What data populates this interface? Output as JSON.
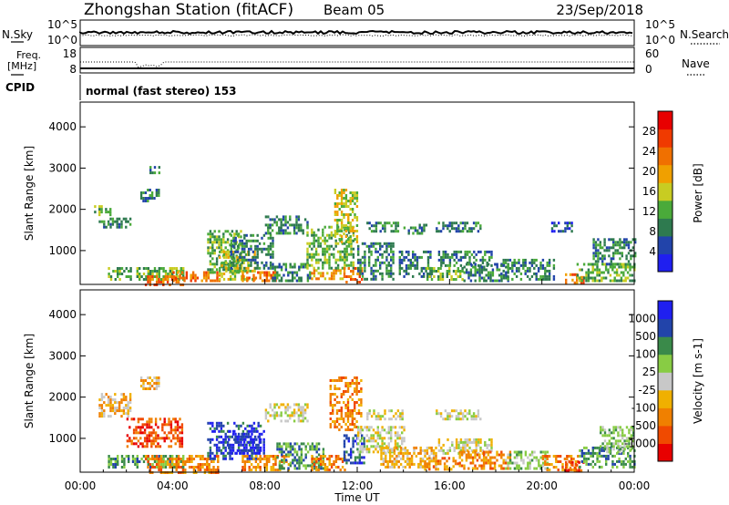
{
  "header": {
    "title": "Zhongshan Station (fitACF)",
    "beam": "Beam 05",
    "date": "23/Sep/2018"
  },
  "top_panel": {
    "left_label": "N.Sky",
    "right_label": "N.Search",
    "left_ticks": [
      "10^5",
      "10^0"
    ],
    "right_ticks": [
      "10^5",
      "10^0"
    ]
  },
  "freq_panel": {
    "left_label_line1": "Freq.",
    "left_label_line2": "[MHz]",
    "left_ticks": [
      "18",
      "8"
    ],
    "right_label": "Nave",
    "right_ticks": [
      "60",
      "0"
    ],
    "cpid_label": "CPID",
    "cpid_text": "normal (fast stereo) 153"
  },
  "colors": {
    "power": [
      "#1f1ff0",
      "#2244aa",
      "#2e7a4f",
      "#4aaa3a",
      "#c8cc22",
      "#f0a000",
      "#f07000",
      "#f03a00",
      "#e80000"
    ],
    "velocity": [
      "#e80000",
      "#f04a00",
      "#f08000",
      "#f0b000",
      "#c8c8c8",
      "#88cc44",
      "#3a8a4a",
      "#2244aa",
      "#1f1ff0"
    ]
  },
  "chart_data": [
    {
      "type": "heatmap",
      "name": "power",
      "ylabel": "Slant Range [km]",
      "yticks": [
        1000,
        2000,
        3000,
        4000
      ],
      "ylim": [
        180,
        4600
      ],
      "xlim": [
        0,
        24
      ],
      "colorbar_label": "Power [dB]",
      "colorbar_ticks": [
        "4",
        "8",
        "12",
        "16",
        "20",
        "24",
        "28"
      ],
      "colorbar_range": [
        0,
        32
      ],
      "regions": [
        {
          "t0": 0.8,
          "t1": 2.2,
          "r0": 1550,
          "r1": 1800,
          "v": 9
        },
        {
          "t0": 0.6,
          "t1": 1.3,
          "r0": 1850,
          "r1": 2100,
          "v": 12
        },
        {
          "t0": 2.6,
          "t1": 3.4,
          "r0": 2200,
          "r1": 2500,
          "v": 9
        },
        {
          "t0": 3.0,
          "t1": 3.5,
          "r0": 2900,
          "r1": 3050,
          "v": 8
        },
        {
          "t0": 1.2,
          "t1": 4.5,
          "r0": 300,
          "r1": 600,
          "v": 14
        },
        {
          "t0": 2.8,
          "t1": 4.6,
          "r0": 200,
          "r1": 400,
          "v": 24
        },
        {
          "t0": 4.0,
          "t1": 6.0,
          "r0": 250,
          "r1": 500,
          "v": 24
        },
        {
          "t0": 5.5,
          "t1": 7.0,
          "r0": 500,
          "r1": 1500,
          "v": 12
        },
        {
          "t0": 6.0,
          "t1": 7.6,
          "r0": 300,
          "r1": 1000,
          "v": 16
        },
        {
          "t0": 7.0,
          "t1": 8.5,
          "r0": 250,
          "r1": 500,
          "v": 22
        },
        {
          "t0": 6.5,
          "t1": 8.3,
          "r0": 600,
          "r1": 1400,
          "v": 10
        },
        {
          "t0": 8.0,
          "t1": 9.8,
          "r0": 1450,
          "r1": 1850,
          "v": 9
        },
        {
          "t0": 8.3,
          "t1": 10.0,
          "r0": 300,
          "r1": 700,
          "v": 10
        },
        {
          "t0": 10.0,
          "t1": 11.4,
          "r0": 300,
          "r1": 550,
          "v": 20
        },
        {
          "t0": 9.8,
          "t1": 11.8,
          "r0": 600,
          "r1": 1600,
          "v": 11
        },
        {
          "t0": 11.0,
          "t1": 12.0,
          "r0": 1200,
          "r1": 2500,
          "v": 15
        },
        {
          "t0": 11.4,
          "t1": 12.2,
          "r0": 250,
          "r1": 600,
          "v": 24
        },
        {
          "t0": 12.0,
          "t1": 13.6,
          "r0": 300,
          "r1": 1200,
          "v": 9
        },
        {
          "t0": 12.4,
          "t1": 13.8,
          "r0": 1500,
          "r1": 1700,
          "v": 8
        },
        {
          "t0": 13.8,
          "t1": 15.2,
          "r0": 400,
          "r1": 1000,
          "v": 9
        },
        {
          "t0": 14.0,
          "t1": 15.0,
          "r0": 1400,
          "r1": 1650,
          "v": 8
        },
        {
          "t0": 15.0,
          "t1": 16.6,
          "r0": 300,
          "r1": 600,
          "v": 14
        },
        {
          "t0": 15.4,
          "t1": 17.3,
          "r0": 1500,
          "r1": 1700,
          "v": 8
        },
        {
          "t0": 15.5,
          "t1": 17.8,
          "r0": 650,
          "r1": 1000,
          "v": 8
        },
        {
          "t0": 16.6,
          "t1": 18.5,
          "r0": 300,
          "r1": 700,
          "v": 10
        },
        {
          "t0": 18.2,
          "t1": 20.5,
          "r0": 300,
          "r1": 800,
          "v": 8
        },
        {
          "t0": 20.4,
          "t1": 21.3,
          "r0": 1500,
          "r1": 1700,
          "v": 7
        },
        {
          "t0": 21.0,
          "t1": 21.8,
          "r0": 200,
          "r1": 450,
          "v": 24
        },
        {
          "t0": 21.5,
          "t1": 24.0,
          "r0": 300,
          "r1": 700,
          "v": 14
        },
        {
          "t0": 22.2,
          "t1": 24.0,
          "r0": 700,
          "r1": 1300,
          "v": 8
        }
      ]
    },
    {
      "type": "heatmap",
      "name": "velocity",
      "ylabel": "Slant Range [km]",
      "yticks": [
        1000,
        2000,
        3000,
        4000
      ],
      "ylim": [
        180,
        4600
      ],
      "xlim": [
        0,
        24
      ],
      "xlabel": "Time UT",
      "xticks": [
        "00:00",
        "04:00",
        "08:00",
        "12:00",
        "16:00",
        "20:00",
        "00:00"
      ],
      "colorbar_label": "Velocity [m s-1]",
      "colorbar_ticks": [
        "-1000",
        "-500",
        "-100",
        "-25",
        "25",
        "100",
        "500",
        "1000"
      ],
      "regions": [
        {
          "t0": 0.8,
          "t1": 2.2,
          "r0": 1550,
          "r1": 2100,
          "v": 3
        },
        {
          "t0": 2.6,
          "t1": 3.4,
          "r0": 2200,
          "r1": 2500,
          "v": 3
        },
        {
          "t0": 2.0,
          "t1": 4.4,
          "r0": 800,
          "r1": 1500,
          "v": 1
        },
        {
          "t0": 1.2,
          "t1": 4.5,
          "r0": 300,
          "r1": 600,
          "v": 6
        },
        {
          "t0": 2.8,
          "t1": 6.0,
          "r0": 200,
          "r1": 600,
          "v": 2
        },
        {
          "t0": 5.5,
          "t1": 7.8,
          "r0": 500,
          "r1": 1400,
          "v": 7
        },
        {
          "t0": 6.4,
          "t1": 8.0,
          "r0": 650,
          "r1": 1200,
          "v": 8
        },
        {
          "t0": 7.0,
          "t1": 9.0,
          "r0": 250,
          "r1": 600,
          "v": 2
        },
        {
          "t0": 8.0,
          "t1": 9.8,
          "r0": 1450,
          "r1": 1850,
          "v": 4
        },
        {
          "t0": 8.5,
          "t1": 10.5,
          "r0": 300,
          "r1": 900,
          "v": 6
        },
        {
          "t0": 10.0,
          "t1": 11.5,
          "r0": 250,
          "r1": 600,
          "v": 2
        },
        {
          "t0": 10.8,
          "t1": 12.2,
          "r0": 1200,
          "r1": 2500,
          "v": 2
        },
        {
          "t0": 11.4,
          "t1": 12.3,
          "r0": 400,
          "r1": 1100,
          "v": 7
        },
        {
          "t0": 12.0,
          "t1": 14.0,
          "r0": 700,
          "r1": 1300,
          "v": 4
        },
        {
          "t0": 12.4,
          "t1": 14.0,
          "r0": 1500,
          "r1": 1700,
          "v": 4
        },
        {
          "t0": 13.0,
          "t1": 15.5,
          "r0": 300,
          "r1": 800,
          "v": 3
        },
        {
          "t0": 14.8,
          "t1": 16.4,
          "r0": 250,
          "r1": 550,
          "v": 2
        },
        {
          "t0": 15.4,
          "t1": 17.3,
          "r0": 1500,
          "r1": 1700,
          "v": 4
        },
        {
          "t0": 15.5,
          "t1": 17.8,
          "r0": 650,
          "r1": 1000,
          "v": 4
        },
        {
          "t0": 16.4,
          "t1": 18.6,
          "r0": 300,
          "r1": 700,
          "v": 2
        },
        {
          "t0": 18.4,
          "t1": 20.2,
          "r0": 300,
          "r1": 700,
          "v": 5
        },
        {
          "t0": 20.0,
          "t1": 21.6,
          "r0": 250,
          "r1": 600,
          "v": 2
        },
        {
          "t0": 21.0,
          "t1": 21.8,
          "r0": 250,
          "r1": 450,
          "v": 1
        },
        {
          "t0": 21.6,
          "t1": 24.0,
          "r0": 300,
          "r1": 800,
          "v": 6
        },
        {
          "t0": 22.5,
          "t1": 24.0,
          "r0": 700,
          "r1": 1300,
          "v": 5
        }
      ]
    }
  ]
}
